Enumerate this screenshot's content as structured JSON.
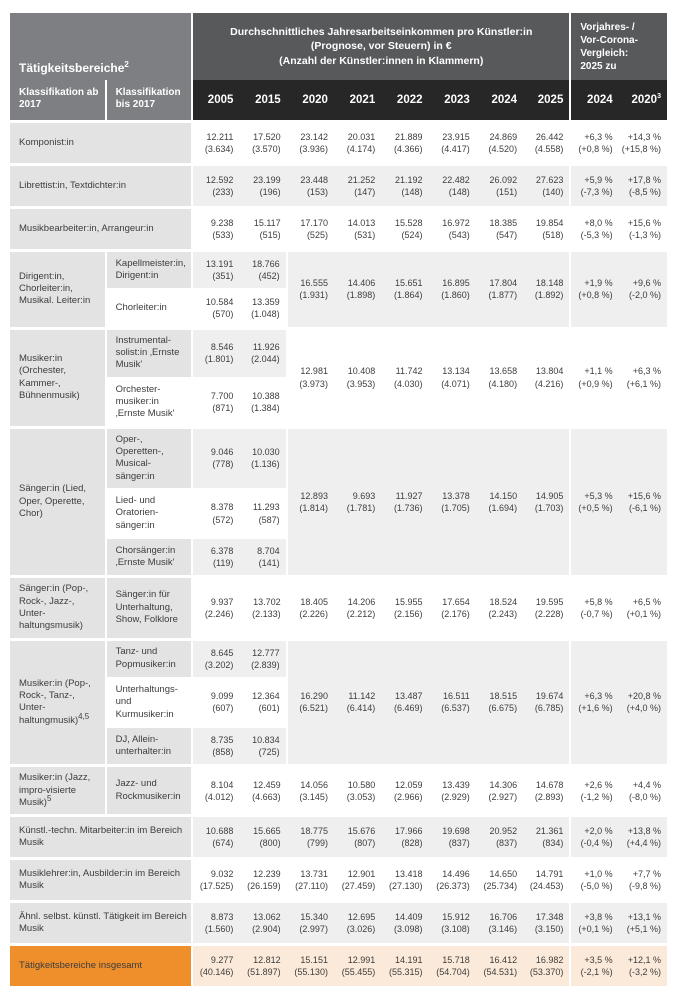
{
  "header": {
    "left_title": "Tätigkeitsbereiche",
    "left_title_sup": "2",
    "main_title_line1": "Durchschnittliches Jahresarbeitseinkommen pro Künstler:in",
    "main_title_line2": "(Prognose, vor Steuern) in €",
    "main_title_line3": "(Anzahl der Künstler:innen in Klammern)",
    "cmp_title_line1": "Vorjahres- /",
    "cmp_title_line2": "Vor-Corona-",
    "cmp_title_line3": "Vergleich:",
    "cmp_title_line4": "2025 zu",
    "col1_header": "Klassifikation ab 2017",
    "col2_header": "Klassifikation bis 2017",
    "years": [
      "2005",
      "2015",
      "2020",
      "2021",
      "2022",
      "2023",
      "2024",
      "2025"
    ],
    "cmp_year_1": "2024",
    "cmp_year_2": "2020",
    "cmp_year_2_sup": "3"
  },
  "colors": {
    "header_gray": "#7d7f82",
    "header_dark": "#58595b",
    "year_band": "#272727",
    "label_gray": "#e3e3e3",
    "row_gray": "#efefef",
    "accent_orange": "#ef8f2c",
    "total_row_peach": "#fbead9"
  },
  "bands": [
    {
      "name": "komponist",
      "label": "Komponist:in",
      "sup": "",
      "span_both": true,
      "tone": "white",
      "subs": [
        {
          "label": "",
          "v": [
            [
              "12.211",
              "(3.634)"
            ],
            [
              "17.520",
              "(3.570)"
            ]
          ]
        }
      ],
      "shared": [
        [
          "23.142",
          "(3.936)"
        ],
        [
          "20.031",
          "(4.174)"
        ],
        [
          "21.889",
          "(4.366)"
        ],
        [
          "23.915",
          "(4.417)"
        ],
        [
          "24.869",
          "(4.520)"
        ],
        [
          "26.442",
          "(4.558)"
        ]
      ],
      "cmp": [
        [
          "+6,3 %",
          "(+0,8 %)"
        ],
        [
          "+14,3 %",
          "(+15,8 %)"
        ]
      ]
    },
    {
      "name": "librettist",
      "label": "Librettist:in, Textdichter:in",
      "sup": "",
      "span_both": true,
      "tone": "gray",
      "subs": [
        {
          "label": "",
          "v": [
            [
              "12.592",
              "(233)"
            ],
            [
              "23.199",
              "(196)"
            ]
          ]
        }
      ],
      "shared": [
        [
          "23.448",
          "(153)"
        ],
        [
          "21.252",
          "(147)"
        ],
        [
          "21.192",
          "(148)"
        ],
        [
          "22.482",
          "(148)"
        ],
        [
          "26.092",
          "(151)"
        ],
        [
          "27.623",
          "(140)"
        ]
      ],
      "cmp": [
        [
          "+5,9 %",
          "(-7,3 %)"
        ],
        [
          "+17,8 %",
          "(-8,5 %)"
        ]
      ]
    },
    {
      "name": "musikbearbeiter",
      "label": "Musikbearbeiter:in, Arrangeur:in",
      "sup": "",
      "span_both": true,
      "tone": "white",
      "subs": [
        {
          "label": "",
          "v": [
            [
              "9.238",
              "(533)"
            ],
            [
              "15.117",
              "(515)"
            ]
          ]
        }
      ],
      "shared": [
        [
          "17.170",
          "(525)"
        ],
        [
          "14.013",
          "(531)"
        ],
        [
          "15.528",
          "(524)"
        ],
        [
          "16.972",
          "(543)"
        ],
        [
          "18.385",
          "(547)"
        ],
        [
          "19.854",
          "(518)"
        ]
      ],
      "cmp": [
        [
          "+8,0 %",
          "(-5,3 %)"
        ],
        [
          "+15,6 %",
          "(-1,3 %)"
        ]
      ]
    },
    {
      "name": "dirigent",
      "label": "Dirigent:in, Chorleiter:in, Musikal. Leiter:in",
      "sup": "",
      "span_both": false,
      "tone": "gray",
      "subs": [
        {
          "label": "Kapellmeister:in, Dirigent:in",
          "v": [
            [
              "13.191",
              "(351)"
            ],
            [
              "18.766",
              "(452)"
            ]
          ]
        },
        {
          "label": "Chorleiter:in",
          "v": [
            [
              "10.584",
              "(570)"
            ],
            [
              "13.359",
              "(1.048)"
            ]
          ]
        }
      ],
      "shared": [
        [
          "16.555",
          "(1.931)"
        ],
        [
          "14.406",
          "(1.898)"
        ],
        [
          "15.651",
          "(1.864)"
        ],
        [
          "16.895",
          "(1.860)"
        ],
        [
          "17.804",
          "(1.877)"
        ],
        [
          "18.148",
          "(1.892)"
        ]
      ],
      "cmp": [
        [
          "+1,9 %",
          "(+0,8 %)"
        ],
        [
          "+9,6 %",
          "(-2,0 %)"
        ]
      ]
    },
    {
      "name": "musiker-orchester",
      "label": "Musiker:in (Orchester, Kammer-, Bühnenmusik)",
      "sup": "",
      "span_both": false,
      "tone": "white",
      "subs": [
        {
          "label": "Instrumental-solist:in ‚Ernste Musik'",
          "v": [
            [
              "8.546",
              "(1.801)"
            ],
            [
              "11.926",
              "(2.044)"
            ]
          ]
        },
        {
          "label": "Orchester-musiker:in ‚Ernste Musik'",
          "v": [
            [
              "7.700",
              "(871)"
            ],
            [
              "10.388",
              "(1.384)"
            ]
          ]
        }
      ],
      "shared": [
        [
          "12.981",
          "(3.973)"
        ],
        [
          "10.408",
          "(3.953)"
        ],
        [
          "11.742",
          "(4.030)"
        ],
        [
          "13.134",
          "(4.071)"
        ],
        [
          "13.658",
          "(4.180)"
        ],
        [
          "13.804",
          "(4.216)"
        ]
      ],
      "cmp": [
        [
          "+1,1 %",
          "(+0,9 %)"
        ],
        [
          "+6,3 %",
          "(+6,1 %)"
        ]
      ]
    },
    {
      "name": "saenger-lied",
      "label": "Sänger:in (Lied, Oper, Operette, Chor)",
      "sup": "",
      "span_both": false,
      "tone": "gray",
      "subs": [
        {
          "label": "Oper-, Operetten-, Musical-sänger:in",
          "v": [
            [
              "9.046",
              "(778)"
            ],
            [
              "10.030",
              "(1.136)"
            ]
          ]
        },
        {
          "label": "Lied- und Oratorien-sänger:in",
          "v": [
            [
              "8.378",
              "(572)"
            ],
            [
              "11.293",
              "(587)"
            ]
          ]
        },
        {
          "label": "Chorsänger:in ‚Ernste Musik'",
          "v": [
            [
              "6.378",
              "(119)"
            ],
            [
              "8.704",
              "(141)"
            ]
          ]
        }
      ],
      "shared": [
        [
          "12.893",
          "(1.814)"
        ],
        [
          "9.693",
          "(1.781)"
        ],
        [
          "11.927",
          "(1.736)"
        ],
        [
          "13.378",
          "(1.705)"
        ],
        [
          "14.150",
          "(1.694)"
        ],
        [
          "14.905",
          "(1.703)"
        ]
      ],
      "cmp": [
        [
          "+5,3 %",
          "(+0,5 %)"
        ],
        [
          "+15,6 %",
          "(-6,1 %)"
        ]
      ]
    },
    {
      "name": "saenger-pop",
      "label": "Sänger:in (Pop-, Rock-, Jazz-, Unter-haltungsmusik)",
      "sup": "",
      "span_both": false,
      "tone": "white",
      "subs": [
        {
          "label": "Sänger:in für Unterhaltung, Show, Folklore",
          "v": [
            [
              "9.937",
              "(2.246)"
            ],
            [
              "13.702",
              "(2.133)"
            ]
          ]
        }
      ],
      "shared": [
        [
          "18.405",
          "(2.226)"
        ],
        [
          "14.206",
          "(2.212)"
        ],
        [
          "15.955",
          "(2.156)"
        ],
        [
          "17.654",
          "(2.176)"
        ],
        [
          "18.524",
          "(2.243)"
        ],
        [
          "19.595",
          "(2.228)"
        ]
      ],
      "cmp": [
        [
          "+5,8 %",
          "(-0,7 %)"
        ],
        [
          "+6,5 %",
          "(+0,1 %)"
        ]
      ]
    },
    {
      "name": "musiker-pop",
      "label": "Musiker:in (Pop-, Rock-, Tanz-, Unter-haltungmusik)",
      "sup": "4,5",
      "span_both": false,
      "tone": "gray",
      "subs": [
        {
          "label": "Tanz- und Popmusiker:in",
          "v": [
            [
              "8.645",
              "(3.202)"
            ],
            [
              "12.777",
              "(2.839)"
            ]
          ]
        },
        {
          "label": "Unterhaltungs- und Kurmusiker:in",
          "v": [
            [
              "9.099",
              "(607)"
            ],
            [
              "12.364",
              "(601)"
            ]
          ]
        },
        {
          "label": "DJ, Allein-unterhalter:in",
          "v": [
            [
              "8.735",
              "(858)"
            ],
            [
              "10.834",
              "(725)"
            ]
          ]
        }
      ],
      "shared": [
        [
          "16.290",
          "(6.521)"
        ],
        [
          "11.142",
          "(6.414)"
        ],
        [
          "13.487",
          "(6.469)"
        ],
        [
          "16.511",
          "(6.537)"
        ],
        [
          "18.515",
          "(6.675)"
        ],
        [
          "19.674",
          "(6.785)"
        ]
      ],
      "cmp": [
        [
          "+6,3 %",
          "(+1,6 %)"
        ],
        [
          "+20,8 %",
          "(+4,0 %)"
        ]
      ]
    },
    {
      "name": "musiker-jazz",
      "label": "Musiker:in (Jazz, impro-visierte Musik)",
      "sup": "5",
      "span_both": false,
      "tone": "white",
      "subs": [
        {
          "label": "Jazz- und Rockmusiker:in",
          "v": [
            [
              "8.104",
              "(4.012)"
            ],
            [
              "12.459",
              "(4.663)"
            ]
          ]
        }
      ],
      "shared": [
        [
          "14.056",
          "(3.145)"
        ],
        [
          "10.580",
          "(3.053)"
        ],
        [
          "12.059",
          "(2.966)"
        ],
        [
          "13.439",
          "(2.929)"
        ],
        [
          "14.306",
          "(2.927)"
        ],
        [
          "14.678",
          "(2.893)"
        ]
      ],
      "cmp": [
        [
          "+2,6 %",
          "(-1,2 %)"
        ],
        [
          "+4,4 %",
          "(-8,0 %)"
        ]
      ]
    },
    {
      "name": "kuenstl-techn",
      "label": "Künstl.-techn. Mitarbeiter:in im Bereich Musik",
      "sup": "",
      "span_both": true,
      "tone": "gray",
      "subs": [
        {
          "label": "",
          "v": [
            [
              "10.688",
              "(674)"
            ],
            [
              "15.665",
              "(800)"
            ]
          ]
        }
      ],
      "shared": [
        [
          "18.775",
          "(799)"
        ],
        [
          "15.676",
          "(807)"
        ],
        [
          "17.966",
          "(828)"
        ],
        [
          "19.698",
          "(837)"
        ],
        [
          "20.952",
          "(837)"
        ],
        [
          "21.361",
          "(834)"
        ]
      ],
      "cmp": [
        [
          "+2,0 %",
          "(-0,4 %)"
        ],
        [
          "+13,8 %",
          "(+4,4 %)"
        ]
      ]
    },
    {
      "name": "musiklehrer",
      "label": "Musiklehrer:in, Ausbilder:in im Bereich Musik",
      "sup": "",
      "span_both": true,
      "tone": "white",
      "subs": [
        {
          "label": "",
          "v": [
            [
              "9.032",
              "(17.525)"
            ],
            [
              "12.239",
              "(26.159)"
            ]
          ]
        }
      ],
      "shared": [
        [
          "13.731",
          "(27.110)"
        ],
        [
          "12.901",
          "(27.459)"
        ],
        [
          "13.418",
          "(27.130)"
        ],
        [
          "14.496",
          "(26.373)"
        ],
        [
          "14.650",
          "(25.734)"
        ],
        [
          "14.791",
          "(24.453)"
        ]
      ],
      "cmp": [
        [
          "+1,0 %",
          "(-5,0 %)"
        ],
        [
          "+7,7 %",
          "(-9,8 %)"
        ]
      ]
    },
    {
      "name": "aehnliche-taetigkeit",
      "label": "Ähnl. selbst. künstl. Tätigkeit im Bereich Musik",
      "sup": "",
      "span_both": true,
      "tone": "gray",
      "subs": [
        {
          "label": "",
          "v": [
            [
              "8.873",
              "(1.560)"
            ],
            [
              "13.062",
              "(2.904)"
            ]
          ]
        }
      ],
      "shared": [
        [
          "15.340",
          "(2.997)"
        ],
        [
          "12.695",
          "(3.026)"
        ],
        [
          "14.409",
          "(3.098)"
        ],
        [
          "15.912",
          "(3.108)"
        ],
        [
          "16.706",
          "(3.146)"
        ],
        [
          "17.348",
          "(3.150)"
        ]
      ],
      "cmp": [
        [
          "+3,8 %",
          "(+0,1 %)"
        ],
        [
          "+13,1 %",
          "(+5,1 %)"
        ]
      ]
    },
    {
      "name": "insgesamt",
      "label": "Tätigkeitsbereiche insgesamt",
      "sup": "",
      "span_both": true,
      "tone": "orange",
      "subs": [
        {
          "label": "",
          "v": [
            [
              "9.277",
              "(40.146)"
            ],
            [
              "12.812",
              "(51.897)"
            ]
          ]
        }
      ],
      "shared": [
        [
          "15.151",
          "(55.130)"
        ],
        [
          "12.991",
          "(55.455)"
        ],
        [
          "14.191",
          "(55.315)"
        ],
        [
          "15.718",
          "(54.704)"
        ],
        [
          "16.412",
          "(54.531)"
        ],
        [
          "16.982",
          "(53.370)"
        ]
      ],
      "cmp": [
        [
          "+3,5 %",
          "(-2,1 %)"
        ],
        [
          "+12,1 %",
          "(-3,2 %)"
        ]
      ]
    }
  ]
}
